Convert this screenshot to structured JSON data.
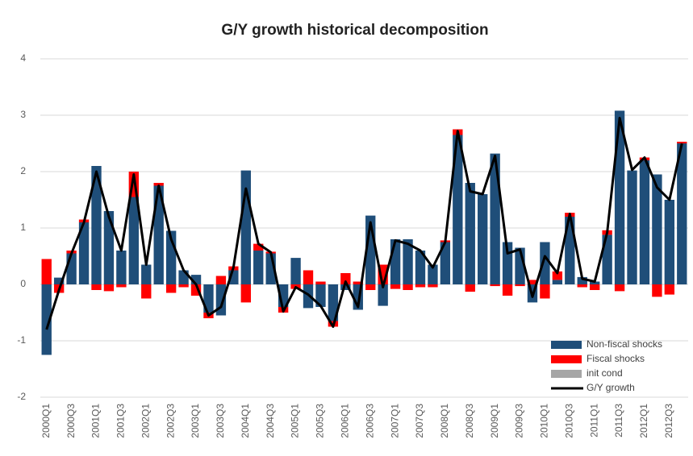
{
  "chart_data": {
    "type": "bar",
    "title": "G/Y growth historical decomposition",
    "categories": [
      "2000Q1",
      null,
      "2000Q3",
      null,
      "2001Q1",
      null,
      "2001Q3",
      null,
      "2002Q1",
      null,
      "2002Q3",
      null,
      "2003Q1",
      null,
      "2003Q3",
      null,
      "2004Q1",
      null,
      "2004Q3",
      null,
      "2005Q1",
      null,
      "2005Q3",
      null,
      "2006Q1",
      null,
      "2006Q3",
      null,
      "2007Q1",
      null,
      "2007Q3",
      null,
      "2008Q1",
      null,
      "2008Q3",
      null,
      "2009Q1",
      null,
      "2009Q3",
      null,
      "2010Q1",
      null,
      "2010Q3",
      null,
      "2011Q1",
      null,
      "2011Q3",
      null,
      "2012Q1",
      null,
      "2012Q3",
      null
    ],
    "series": [
      {
        "name": "Non-fiscal shocks",
        "color": "#1f4e79",
        "values": [
          -1.25,
          0.12,
          0.55,
          1.1,
          2.1,
          1.3,
          0.6,
          1.55,
          0.35,
          1.75,
          0.95,
          0.25,
          0.17,
          -0.5,
          -0.55,
          0.25,
          2.02,
          0.6,
          0.55,
          -0.4,
          0.47,
          -0.42,
          -0.4,
          -0.65,
          -0.1,
          -0.45,
          1.22,
          -0.38,
          0.8,
          0.8,
          0.6,
          0.35,
          0.75,
          2.65,
          1.8,
          1.6,
          2.32,
          0.75,
          0.65,
          -0.32,
          0.75,
          0.08,
          1.2,
          0.13,
          0.05,
          0.88,
          3.08,
          2.02,
          2.2,
          1.95,
          1.5,
          2.5
        ]
      },
      {
        "name": "Fiscal shocks",
        "color": "#ff0000",
        "values": [
          0.45,
          -0.15,
          0.05,
          0.05,
          -0.1,
          -0.12,
          -0.05,
          0.45,
          -0.25,
          0.05,
          -0.15,
          -0.05,
          -0.2,
          -0.1,
          0.15,
          0.07,
          -0.32,
          0.12,
          0.03,
          -0.1,
          -0.08,
          0.25,
          0.05,
          -0.1,
          0.2,
          0.05,
          -0.1,
          0.35,
          -0.08,
          -0.1,
          -0.05,
          -0.05,
          0.03,
          0.1,
          -0.13,
          0.0,
          -0.03,
          -0.2,
          -0.03,
          0.08,
          -0.25,
          0.15,
          0.07,
          -0.05,
          -0.1,
          0.08,
          -0.12,
          0.0,
          0.05,
          -0.22,
          -0.18,
          0.03
        ]
      },
      {
        "name": "init cond",
        "color": "#a6a6a6",
        "values": [
          0,
          0,
          0,
          0,
          0,
          0,
          0,
          0,
          0,
          0,
          0,
          0,
          0,
          0,
          0,
          0,
          0,
          0,
          0,
          0,
          0,
          0,
          0,
          0,
          0,
          0,
          0,
          0,
          0,
          0,
          0,
          0,
          0,
          0,
          0,
          0,
          0,
          0,
          0,
          0,
          0,
          0,
          0,
          0,
          0,
          0,
          0,
          0,
          0,
          0,
          0,
          0
        ]
      },
      {
        "name": "G/Y growth",
        "color": "#000000",
        "type": "line",
        "values": [
          -0.8,
          -0.1,
          0.55,
          1.1,
          2.0,
          1.2,
          0.6,
          1.95,
          0.35,
          1.75,
          0.8,
          0.25,
          0.0,
          -0.55,
          -0.4,
          0.3,
          1.7,
          0.72,
          0.57,
          -0.48,
          -0.05,
          -0.18,
          -0.38,
          -0.75,
          0.05,
          -0.4,
          1.1,
          -0.05,
          0.78,
          0.72,
          0.6,
          0.3,
          0.75,
          2.72,
          1.65,
          1.6,
          2.28,
          0.55,
          0.62,
          -0.22,
          0.5,
          0.2,
          1.25,
          0.1,
          0.05,
          0.92,
          2.95,
          2.03,
          2.25,
          1.72,
          1.5,
          2.5
        ]
      }
    ],
    "ylim": [
      -2,
      4
    ],
    "yticks": [
      -2,
      -1,
      0,
      1,
      2,
      3,
      4
    ],
    "grid": true,
    "legend": "bottom-right"
  }
}
